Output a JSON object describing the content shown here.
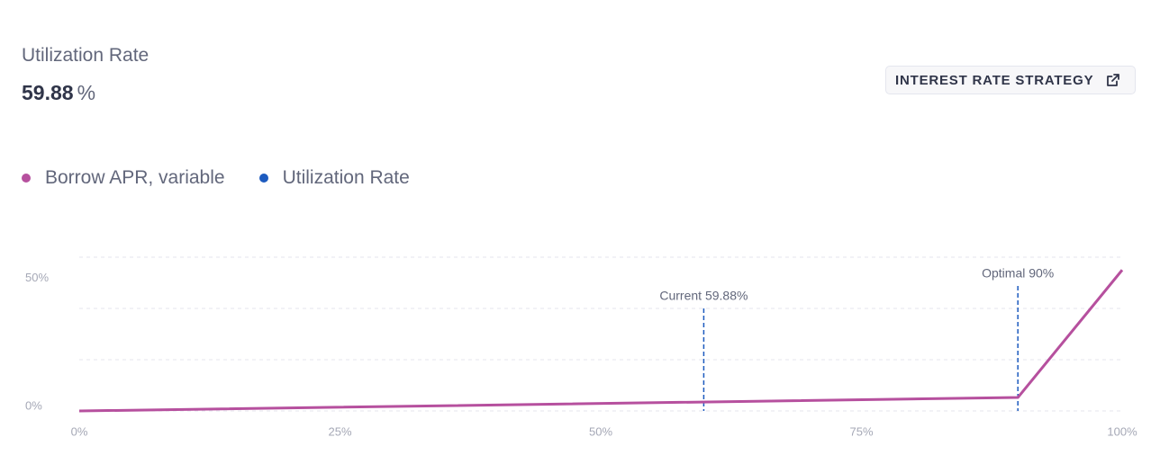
{
  "header": {
    "title": "Utilization Rate",
    "value": "59.88",
    "unit": "%"
  },
  "button": {
    "label": "INTEREST RATE STRATEGY"
  },
  "chart_data": {
    "type": "line",
    "series": [
      {
        "name": "Borrow APR, variable",
        "color": "#b6509e",
        "x": [
          0,
          90,
          100
        ],
        "values": [
          0,
          5.25,
          55
        ]
      },
      {
        "name": "Utilization Rate",
        "color": "#1d5bbf"
      }
    ],
    "annotations": [
      {
        "x": 59.88,
        "label": "Current 59.88%"
      },
      {
        "x": 90,
        "label": "Optimal 90%"
      }
    ],
    "xlim": [
      0,
      100
    ],
    "xticks": [
      {
        "value": 0,
        "label": "0%"
      },
      {
        "value": 25,
        "label": "25%"
      },
      {
        "value": 50,
        "label": "50%"
      },
      {
        "value": 75,
        "label": "75%"
      },
      {
        "value": 100,
        "label": "100%"
      }
    ],
    "ylim": [
      0,
      60
    ],
    "yticks": [
      {
        "value": 0,
        "label": "0%"
      },
      {
        "value": 50,
        "label": "50%"
      }
    ],
    "ygrid": [
      0,
      20,
      40,
      60
    ],
    "grid": true
  }
}
